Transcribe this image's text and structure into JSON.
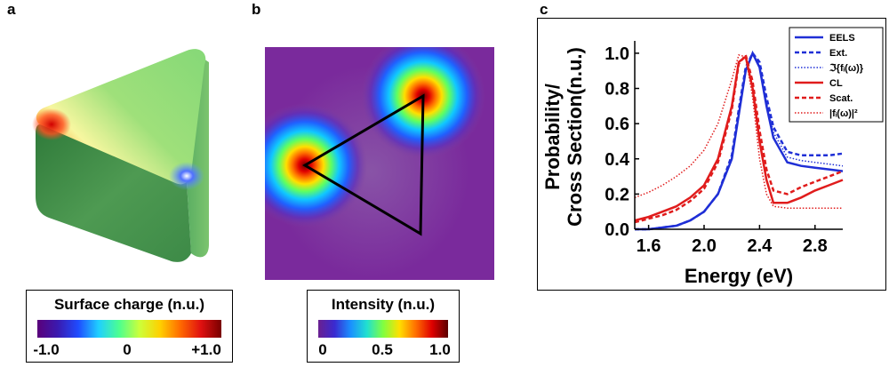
{
  "panels": {
    "a": {
      "label": "a",
      "colorbar": {
        "title": "Surface charge (n.u.)",
        "ticks": [
          "-1.0",
          "0",
          "+1.0"
        ]
      }
    },
    "b": {
      "label": "b",
      "colorbar": {
        "title": "Intensity (n.u.)",
        "ticks": [
          "0",
          "0.5",
          "1.0"
        ]
      }
    },
    "c": {
      "label": "c"
    }
  },
  "chart_data": {
    "type": "line",
    "title": "",
    "xlabel": "Energy (eV)",
    "ylabel_line1": "Probability/",
    "ylabel_line2": "Cross Section(n.u.)",
    "xlim": [
      1.5,
      3.0
    ],
    "ylim": [
      0.0,
      1.05
    ],
    "xticks": [
      1.6,
      2.0,
      2.4,
      2.8
    ],
    "xtick_labels": [
      "1.6",
      "2.0",
      "2.4",
      "2.8"
    ],
    "yticks": [
      0.0,
      0.2,
      0.4,
      0.6,
      0.8,
      1.0
    ],
    "ytick_labels": [
      "0.0",
      "0.2",
      "0.4",
      "0.6",
      "0.8",
      "1.0"
    ],
    "grid": false,
    "legend_position": "top-right",
    "x": [
      1.5,
      1.6,
      1.7,
      1.8,
      1.9,
      2.0,
      2.1,
      2.2,
      2.25,
      2.3,
      2.35,
      2.4,
      2.45,
      2.5,
      2.6,
      2.7,
      2.8,
      2.9,
      3.0
    ],
    "series": [
      {
        "name": "EELS",
        "color": "#1f2fd6",
        "style": "solid",
        "values": [
          0.0,
          0.0,
          0.01,
          0.02,
          0.05,
          0.1,
          0.2,
          0.4,
          0.65,
          0.9,
          1.0,
          0.92,
          0.7,
          0.52,
          0.38,
          0.36,
          0.35,
          0.34,
          0.33
        ]
      },
      {
        "name": "Ext.",
        "color": "#1f2fd6",
        "style": "dashed",
        "values": [
          0.0,
          0.0,
          0.01,
          0.02,
          0.05,
          0.1,
          0.2,
          0.42,
          0.68,
          0.92,
          1.0,
          0.95,
          0.75,
          0.58,
          0.44,
          0.42,
          0.42,
          0.42,
          0.43
        ]
      },
      {
        "name": "ℑ{fᵢ(ω)}",
        "color": "#1f2fd6",
        "style": "dotted",
        "values": [
          0.0,
          0.0,
          0.01,
          0.02,
          0.05,
          0.1,
          0.2,
          0.41,
          0.66,
          0.91,
          1.0,
          0.93,
          0.72,
          0.55,
          0.41,
          0.39,
          0.38,
          0.37,
          0.36
        ]
      },
      {
        "name": "CL",
        "color": "#e01c1c",
        "style": "solid",
        "values": [
          0.05,
          0.07,
          0.1,
          0.13,
          0.18,
          0.25,
          0.4,
          0.7,
          0.95,
          0.98,
          0.8,
          0.5,
          0.28,
          0.15,
          0.15,
          0.18,
          0.22,
          0.25,
          0.28
        ]
      },
      {
        "name": "Scat.",
        "color": "#e01c1c",
        "style": "dashed",
        "values": [
          0.04,
          0.06,
          0.08,
          0.11,
          0.16,
          0.23,
          0.38,
          0.68,
          0.94,
          0.99,
          0.84,
          0.56,
          0.34,
          0.22,
          0.2,
          0.24,
          0.27,
          0.3,
          0.33
        ]
      },
      {
        "name": "|fᵢ(ω)|²",
        "color": "#e01c1c",
        "style": "dotted",
        "values": [
          0.18,
          0.21,
          0.25,
          0.3,
          0.36,
          0.45,
          0.6,
          0.85,
          0.99,
          0.98,
          0.75,
          0.4,
          0.2,
          0.13,
          0.12,
          0.12,
          0.12,
          0.12,
          0.12
        ]
      }
    ]
  }
}
